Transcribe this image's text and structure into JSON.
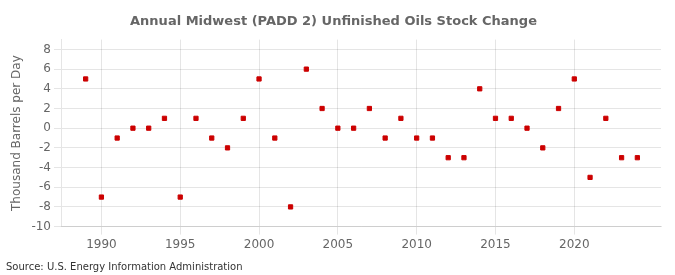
{
  "chart_data": {
    "type": "scatter",
    "title": "Annual Midwest (PADD 2) Unfinished Oils Stock Change",
    "ylabel": "Thousand Barrels per Day",
    "annotations": [
      "Source: U.S. Energy Information Administration"
    ],
    "x": [
      1989,
      1990,
      1991,
      1992,
      1993,
      1994,
      1995,
      1996,
      1997,
      1998,
      1999,
      2000,
      2001,
      2002,
      2003,
      2004,
      2005,
      2006,
      2007,
      2008,
      2009,
      2010,
      2011,
      2012,
      2013,
      2014,
      2015,
      2016,
      2017,
      2018,
      2019,
      2020,
      2021,
      2022,
      2023,
      2024
    ],
    "values": [
      5,
      -7,
      -1,
      0,
      0,
      1,
      -7,
      1,
      -1,
      -2,
      1,
      5,
      -1,
      -8,
      6,
      2,
      0,
      0,
      2,
      -1,
      1,
      -1,
      -1,
      -3,
      -3,
      4,
      1,
      1,
      0,
      -2,
      2,
      5,
      -5,
      1,
      -3,
      -3
    ],
    "color": "#cc0000",
    "marker": "square",
    "xlim": [
      1987.5,
      2025.5
    ],
    "xticks": [
      1990,
      1995,
      2000,
      2005,
      2010,
      2015,
      2020
    ],
    "ylim": [
      -10,
      9
    ],
    "yticks": [
      -10,
      -8,
      -6,
      -4,
      -2,
      0,
      2,
      4,
      6,
      8
    ],
    "grid": true
  }
}
